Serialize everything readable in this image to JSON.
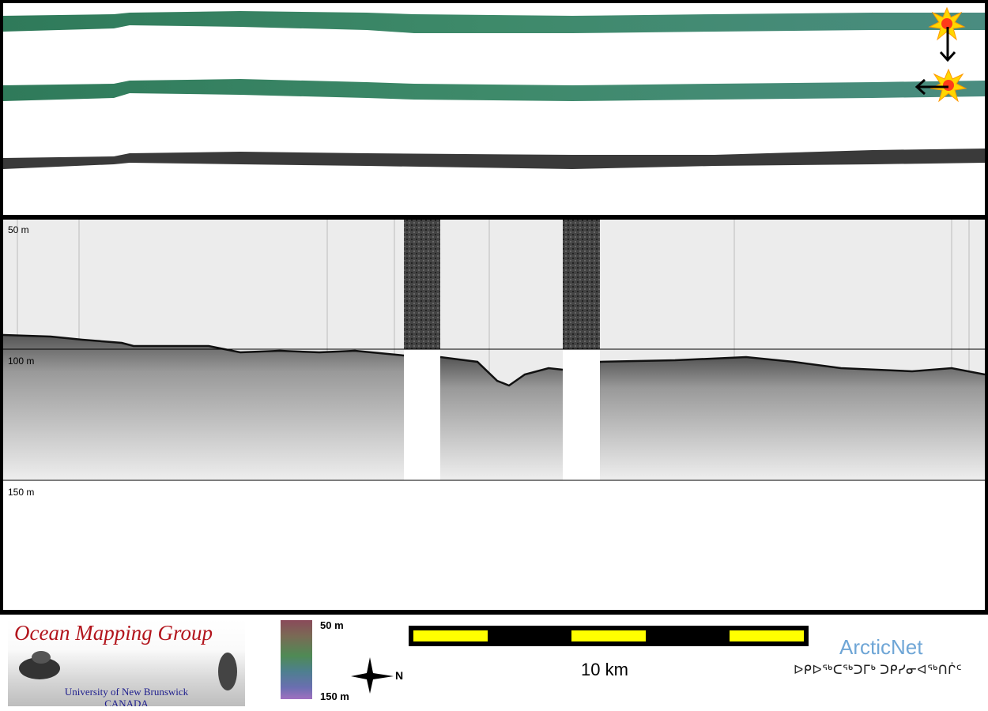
{
  "profile": {
    "depth_labels": [
      "50 m",
      "100 m",
      "150 m"
    ]
  },
  "logos": {
    "omg_title": "Ocean Mapping Group",
    "omg_line1": "University of New Brunswick",
    "omg_line2": "CANADA",
    "arctic_name": "ArcticNet",
    "arctic_syllabics": "ᐅᑭᐅᖅᑕᖅᑐᒥᒃ ᑐᑭᓯᓂᐊᖅᑎᒌᑦ"
  },
  "legend": {
    "color_top": "50 m",
    "color_bottom": "150 m",
    "north_letter": "N",
    "scale_label": "10 km"
  },
  "colors": {
    "swath": "#3e8a6a",
    "highlight": "#ffff00",
    "omg_red": "#b2141c",
    "arctic_blue": "#6fa6d6"
  }
}
